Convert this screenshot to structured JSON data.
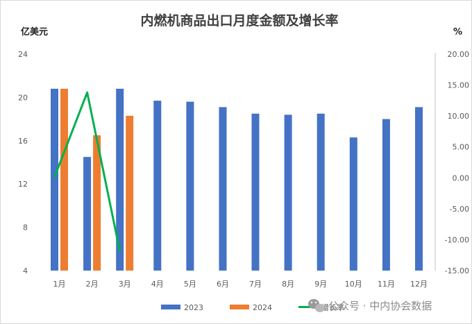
{
  "chart_data": {
    "type": "bar",
    "title": "内燃机商品出口月度金额及增长率",
    "ylabel_left": "亿美元",
    "ylabel_right": "%",
    "categories": [
      "1月",
      "2月",
      "3月",
      "4月",
      "5月",
      "6月",
      "7月",
      "8月",
      "9月",
      "10月",
      "11月",
      "12月"
    ],
    "y_left": {
      "min": 4,
      "max": 24,
      "ticks": [
        "4",
        "8",
        "12",
        "16",
        "20",
        "24"
      ]
    },
    "y_right": {
      "min": -15,
      "max": 20,
      "ticks": [
        "-15.00",
        "-10.00",
        "-5.00",
        "0.00",
        "5.00",
        "10.00",
        "15.00",
        "20.00"
      ]
    },
    "series": [
      {
        "name": "2023",
        "kind": "bar",
        "axis": "left",
        "color": "#4472C4",
        "values": [
          20.8,
          14.5,
          20.8,
          19.7,
          19.6,
          19.1,
          18.5,
          18.4,
          18.5,
          16.3,
          18.0,
          19.1
        ]
      },
      {
        "name": "2024",
        "kind": "bar",
        "axis": "left",
        "color": "#ED7D31",
        "values": [
          20.8,
          16.5,
          18.3,
          null,
          null,
          null,
          null,
          null,
          null,
          null,
          null,
          null
        ]
      },
      {
        "name": "增长率",
        "kind": "line",
        "axis": "right",
        "color": "#00B050",
        "values": [
          0.1,
          13.8,
          -11.9,
          null,
          null,
          null,
          null,
          null,
          null,
          null,
          null,
          null
        ]
      }
    ],
    "legend_position": "bottom",
    "grid": false
  },
  "watermark": {
    "text": "公众号 · 中内协会数据"
  }
}
